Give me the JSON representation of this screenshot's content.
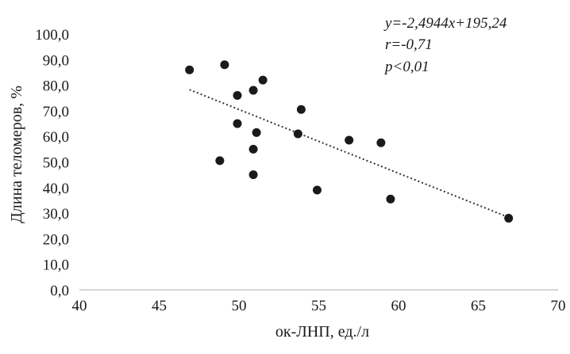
{
  "chart_data": {
    "type": "scatter",
    "title": "",
    "xlabel": "ок-ЛНП, ед./л",
    "ylabel": "Длина теломеров, %",
    "xlim": [
      40,
      70
    ],
    "ylim": [
      0,
      100
    ],
    "x_ticks": [
      40,
      45,
      50,
      55,
      60,
      65,
      70
    ],
    "x_tick_labels": [
      "40",
      "45",
      "50",
      "55",
      "60",
      "65",
      "70"
    ],
    "y_ticks": [
      0,
      10,
      20,
      30,
      40,
      50,
      60,
      70,
      80,
      90,
      100
    ],
    "y_tick_labels": [
      "0,0",
      "10,0",
      "20,0",
      "30,0",
      "40,0",
      "50,0",
      "60,0",
      "70,0",
      "80,0",
      "90,0",
      "100,0"
    ],
    "grid": false,
    "legend": "none",
    "points": [
      {
        "x": 46.9,
        "y": 86.0
      },
      {
        "x": 49.1,
        "y": 88.0
      },
      {
        "x": 51.5,
        "y": 82.0
      },
      {
        "x": 49.9,
        "y": 76.0
      },
      {
        "x": 50.9,
        "y": 78.0
      },
      {
        "x": 53.9,
        "y": 70.5
      },
      {
        "x": 49.9,
        "y": 65.0
      },
      {
        "x": 51.1,
        "y": 61.5
      },
      {
        "x": 53.7,
        "y": 61.0
      },
      {
        "x": 56.9,
        "y": 58.5
      },
      {
        "x": 58.9,
        "y": 57.5
      },
      {
        "x": 50.9,
        "y": 55.0
      },
      {
        "x": 48.8,
        "y": 50.5
      },
      {
        "x": 50.9,
        "y": 45.0
      },
      {
        "x": 54.9,
        "y": 39.0
      },
      {
        "x": 59.5,
        "y": 35.5
      },
      {
        "x": 66.9,
        "y": 28.0
      }
    ],
    "trendline": {
      "slope": -2.4944,
      "intercept": 195.24,
      "x_range": [
        46.9,
        66.9
      ],
      "style": "dotted"
    },
    "marker_color": "#1a1a1a",
    "annotations": [
      "y=-2,4944x+195,24",
      "r=-0,71",
      "p<0,01"
    ]
  }
}
